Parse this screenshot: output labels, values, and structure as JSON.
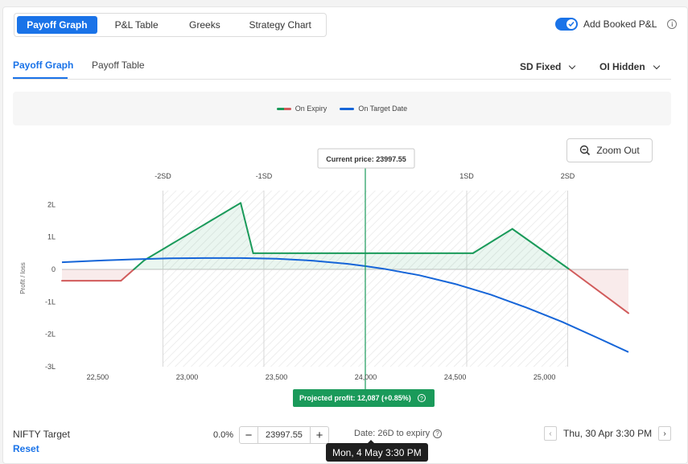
{
  "top_tabs": [
    "Payoff Graph",
    "P&L Table",
    "Greeks",
    "Strategy Chart"
  ],
  "add_booked_pl": {
    "label": "Add Booked P&L",
    "on": true
  },
  "sub_tabs": [
    "Payoff Graph",
    "Payoff Table"
  ],
  "dropdowns": {
    "sd": "SD Fixed",
    "oi": "OI Hidden"
  },
  "legend": {
    "expiry": "On Expiry",
    "target": "On Target Date"
  },
  "zoom_out": "Zoom Out",
  "current_price_label": "Current price: 23997.55",
  "projected_profit_label": "Projected profit: 12,087 (+0.85%)",
  "colors": {
    "accent": "#1a73e8",
    "profit": "#1a9a5a",
    "loss": "#d15b5b",
    "target": "#1565d8"
  },
  "chart_data": {
    "type": "line",
    "ylabel": "Profit / loss",
    "x_ticks": [
      22500,
      23000,
      23500,
      24000,
      24500,
      25000
    ],
    "x_tick_labels": [
      "22,500",
      "23,000",
      "23,500",
      "24,000",
      "24,500",
      "25,000"
    ],
    "y_ticks": [
      2,
      1,
      0,
      -1,
      -2,
      -3
    ],
    "y_tick_labels": [
      "2L",
      "1L",
      "0",
      "-1L",
      "-2L",
      "-3L"
    ],
    "xlim": [
      22300,
      25470
    ],
    "ylim": [
      -3,
      2
    ],
    "sd_lines": [
      {
        "label": "-2SD",
        "x": 22865
      },
      {
        "label": "-1SD",
        "x": 23430
      },
      {
        "label": "1SD",
        "x": 24565
      },
      {
        "label": "2SD",
        "x": 25130
      }
    ],
    "current_price": 23997.55,
    "series": [
      {
        "name": "On Expiry",
        "x": [
          22300,
          22630,
          22760,
          23300,
          23370,
          24000,
          24600,
          24820,
          25140,
          25470
        ],
        "y": [
          -0.35,
          -0.35,
          0.28,
          2.05,
          0.5,
          0.5,
          0.5,
          1.25,
          0.0,
          -1.35
        ]
      },
      {
        "name": "On Target Date",
        "x": [
          22300,
          22500,
          22700,
          22900,
          23100,
          23300,
          23500,
          23700,
          23900,
          24000,
          24100,
          24300,
          24500,
          24700,
          24900,
          25100,
          25300,
          25470
        ],
        "y": [
          0.22,
          0.27,
          0.31,
          0.34,
          0.35,
          0.35,
          0.33,
          0.27,
          0.17,
          0.1,
          0.02,
          -0.18,
          -0.45,
          -0.78,
          -1.18,
          -1.62,
          -2.12,
          -2.55
        ]
      }
    ]
  },
  "bottom": {
    "target_label": "NIFTY Target",
    "reset": "Reset",
    "pct": "0.0%",
    "price": "23997.55",
    "date_info": "Date: 26D to expiry",
    "date": "Thu, 30 Apr 3:30 PM",
    "tooltip": "Mon, 4 May 3:30 PM"
  }
}
